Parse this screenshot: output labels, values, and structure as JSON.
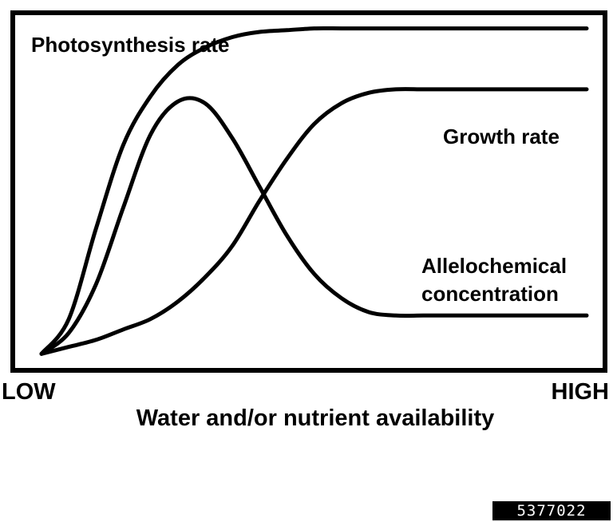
{
  "chart_data": {
    "type": "line",
    "title": "",
    "xlabel": "Water and/or nutrient availability",
    "ylabel": "",
    "x_tick_labels": [
      "LOW",
      "HIGH"
    ],
    "xlim": [
      0,
      1
    ],
    "ylim": [
      0,
      1
    ],
    "grid": false,
    "x": [
      0,
      0.05,
      0.1,
      0.15,
      0.2,
      0.25,
      0.3,
      0.35,
      0.4,
      0.45,
      0.5,
      0.55,
      0.6,
      0.65,
      0.7,
      0.75,
      0.8,
      0.85,
      0.9,
      0.95,
      1.0
    ],
    "series": [
      {
        "name": "Photosynthesis rate",
        "values": [
          0.02,
          0.12,
          0.38,
          0.62,
          0.76,
          0.85,
          0.9,
          0.93,
          0.945,
          0.95,
          0.955,
          0.955,
          0.955,
          0.955,
          0.955,
          0.955,
          0.955,
          0.955,
          0.955,
          0.955,
          0.955
        ]
      },
      {
        "name": "Growth rate",
        "values": [
          0.02,
          0.04,
          0.06,
          0.09,
          0.12,
          0.17,
          0.24,
          0.33,
          0.46,
          0.58,
          0.68,
          0.74,
          0.77,
          0.78,
          0.78,
          0.78,
          0.78,
          0.78,
          0.78,
          0.78,
          0.78
        ]
      },
      {
        "name": "Allelochemical concentration",
        "values": [
          0.02,
          0.08,
          0.22,
          0.44,
          0.65,
          0.745,
          0.74,
          0.64,
          0.5,
          0.36,
          0.25,
          0.18,
          0.14,
          0.13,
          0.13,
          0.13,
          0.13,
          0.13,
          0.13,
          0.13,
          0.13
        ]
      }
    ],
    "annotations": [
      {
        "text": "Photosynthesis rate",
        "series": "Photosynthesis rate"
      },
      {
        "text": "Growth rate",
        "series": "Growth rate"
      },
      {
        "text": "Allelochemical concentration",
        "series": "Allelochemical concentration"
      }
    ]
  },
  "labels": {
    "photosynthesis": "Photosynthesis rate",
    "growth": "Growth rate",
    "allelo_line1": "Allelochemical",
    "allelo_line2": "concentration",
    "x_low": "LOW",
    "x_high": "HIGH",
    "x_axis": "Water and/or nutrient availability"
  },
  "image_id": "5377022"
}
